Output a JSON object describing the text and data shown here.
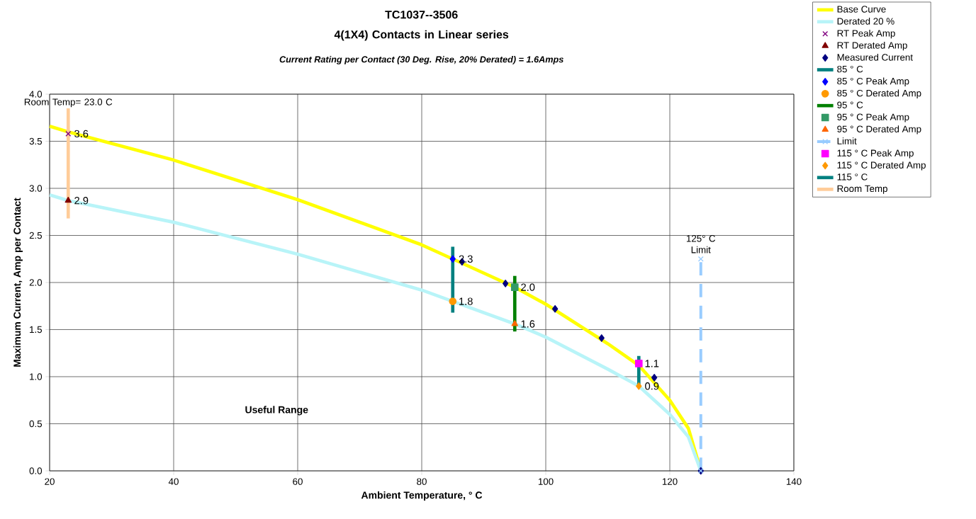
{
  "chart_data": {
    "type": "line",
    "title": "TC1037--3506\n4(1X4) Contacts in Linear series",
    "subtitle": "Current Rating per Contact (30 Deg. Rise, 20% Derated)  = 1.6Amps",
    "xlabel": "Ambient Temperature,  ° C",
    "ylabel": "Maximum Current, Amp per Contact",
    "xlim": [
      20,
      140
    ],
    "xticks": [
      20,
      40,
      60,
      80,
      100,
      120,
      140
    ],
    "ylim": [
      0,
      4
    ],
    "yticks": [
      {
        "value": 0,
        "label": "0.0"
      },
      {
        "value": 0.5,
        "label": "0.5"
      },
      {
        "value": 1,
        "label": "1.0"
      },
      {
        "value": 1.5,
        "label": "1.5"
      },
      {
        "value": 2,
        "label": "2.0"
      },
      {
        "value": 2.5,
        "label": "2.5"
      },
      {
        "value": 3,
        "label": "3.0"
      },
      {
        "value": 3.5,
        "label": "3.5"
      },
      {
        "value": 4,
        "label": "4.0"
      }
    ],
    "grid": true,
    "legend": "right",
    "annotations": [
      {
        "text": "Room Temp= 23.0 C",
        "x": 23,
        "y": 3.85
      },
      {
        "text": "125° C\nLimit",
        "x": 125,
        "y": 2.3
      },
      "Useful Range"
    ],
    "series": [
      {
        "name": "Base Curve",
        "color": "#ffff00",
        "marker": "none",
        "x": [
          20,
          23,
          40,
          60,
          80,
          85,
          95,
          100,
          110,
          115,
          120,
          123,
          125
        ],
        "values": [
          3.66,
          3.6,
          3.3,
          2.88,
          2.4,
          2.25,
          1.95,
          1.77,
          1.35,
          1.12,
          0.75,
          0.45,
          0
        ]
      },
      {
        "name": "Derated 20 %",
        "color": "#b8f4f8",
        "marker": "none",
        "x": [
          20,
          23,
          40,
          60,
          80,
          85,
          95,
          100,
          110,
          115,
          120,
          123,
          125
        ],
        "values": [
          2.93,
          2.87,
          2.64,
          2.3,
          1.92,
          1.8,
          1.56,
          1.42,
          1.08,
          0.9,
          0.6,
          0.36,
          0
        ]
      },
      {
        "name": "RT Peak Amp",
        "type": "scatter",
        "color": "#800080",
        "marker": "cross",
        "x": [
          23
        ],
        "values": [
          3.58
        ],
        "value_labels": [
          "3.6"
        ]
      },
      {
        "name": "RT Derated Amp",
        "type": "scatter",
        "color": "#800000",
        "marker": "triangle",
        "x": [
          23
        ],
        "values": [
          2.87
        ],
        "value_labels": [
          "2.9"
        ]
      },
      {
        "name": "Measured Current",
        "type": "scatter",
        "color": "#000080",
        "marker": "diamond",
        "x": [
          86.5,
          93.5,
          101.5,
          109,
          117.5,
          125
        ],
        "values": [
          2.22,
          1.99,
          1.72,
          1.41,
          0.99,
          0
        ]
      },
      {
        "name": "85 ° C",
        "color": "#008080",
        "marker": "none",
        "x": [
          85,
          85
        ],
        "values": [
          1.68,
          2.38
        ]
      },
      {
        "name": "85  ° C Peak Amp",
        "type": "scatter",
        "color": "#0000ff",
        "marker": "diamond",
        "x": [
          85
        ],
        "values": [
          2.25
        ],
        "value_labels": [
          "2.3"
        ]
      },
      {
        "name": "85  ° C Derated Amp",
        "type": "scatter",
        "color": "#ff9900",
        "marker": "circle",
        "x": [
          85
        ],
        "values": [
          1.8
        ],
        "value_labels": [
          "1.8"
        ]
      },
      {
        "name": "95  ° C",
        "color": "#008000",
        "marker": "none",
        "x": [
          95,
          95
        ],
        "values": [
          1.48,
          2.07
        ]
      },
      {
        "name": "95  ° C Peak Amp",
        "type": "scatter",
        "color": "#339966",
        "marker": "square",
        "x": [
          95
        ],
        "values": [
          1.95
        ],
        "value_labels": [
          "2.0"
        ]
      },
      {
        "name": "95  ° C Derated Amp",
        "type": "scatter",
        "color": "#ff6600",
        "marker": "triangle",
        "x": [
          95
        ],
        "values": [
          1.56
        ],
        "value_labels": [
          "1.6"
        ]
      },
      {
        "name": "Limit",
        "color": "#99ccff",
        "marker": "cross",
        "line_style": "dashed",
        "x": [
          125,
          125
        ],
        "values": [
          0,
          2.25
        ]
      },
      {
        "name": "115  ° C Peak Amp",
        "type": "scatter",
        "color": "#ff00ff",
        "marker": "square",
        "x": [
          115
        ],
        "values": [
          1.14
        ],
        "value_labels": [
          "1.1"
        ]
      },
      {
        "name": "115  ° C Derated Amp",
        "type": "scatter",
        "color": "#ff9900",
        "marker": "diamond",
        "x": [
          115
        ],
        "values": [
          0.9
        ],
        "value_labels": [
          "0.9"
        ]
      },
      {
        "name": "115  ° C",
        "color": "#008080",
        "marker": "none",
        "x": [
          115,
          115
        ],
        "values": [
          0.9,
          1.22
        ]
      },
      {
        "name": "Room Temp",
        "color": "#ffcc99",
        "marker": "none",
        "x": [
          23,
          23
        ],
        "values": [
          2.68,
          3.85
        ]
      }
    ]
  }
}
